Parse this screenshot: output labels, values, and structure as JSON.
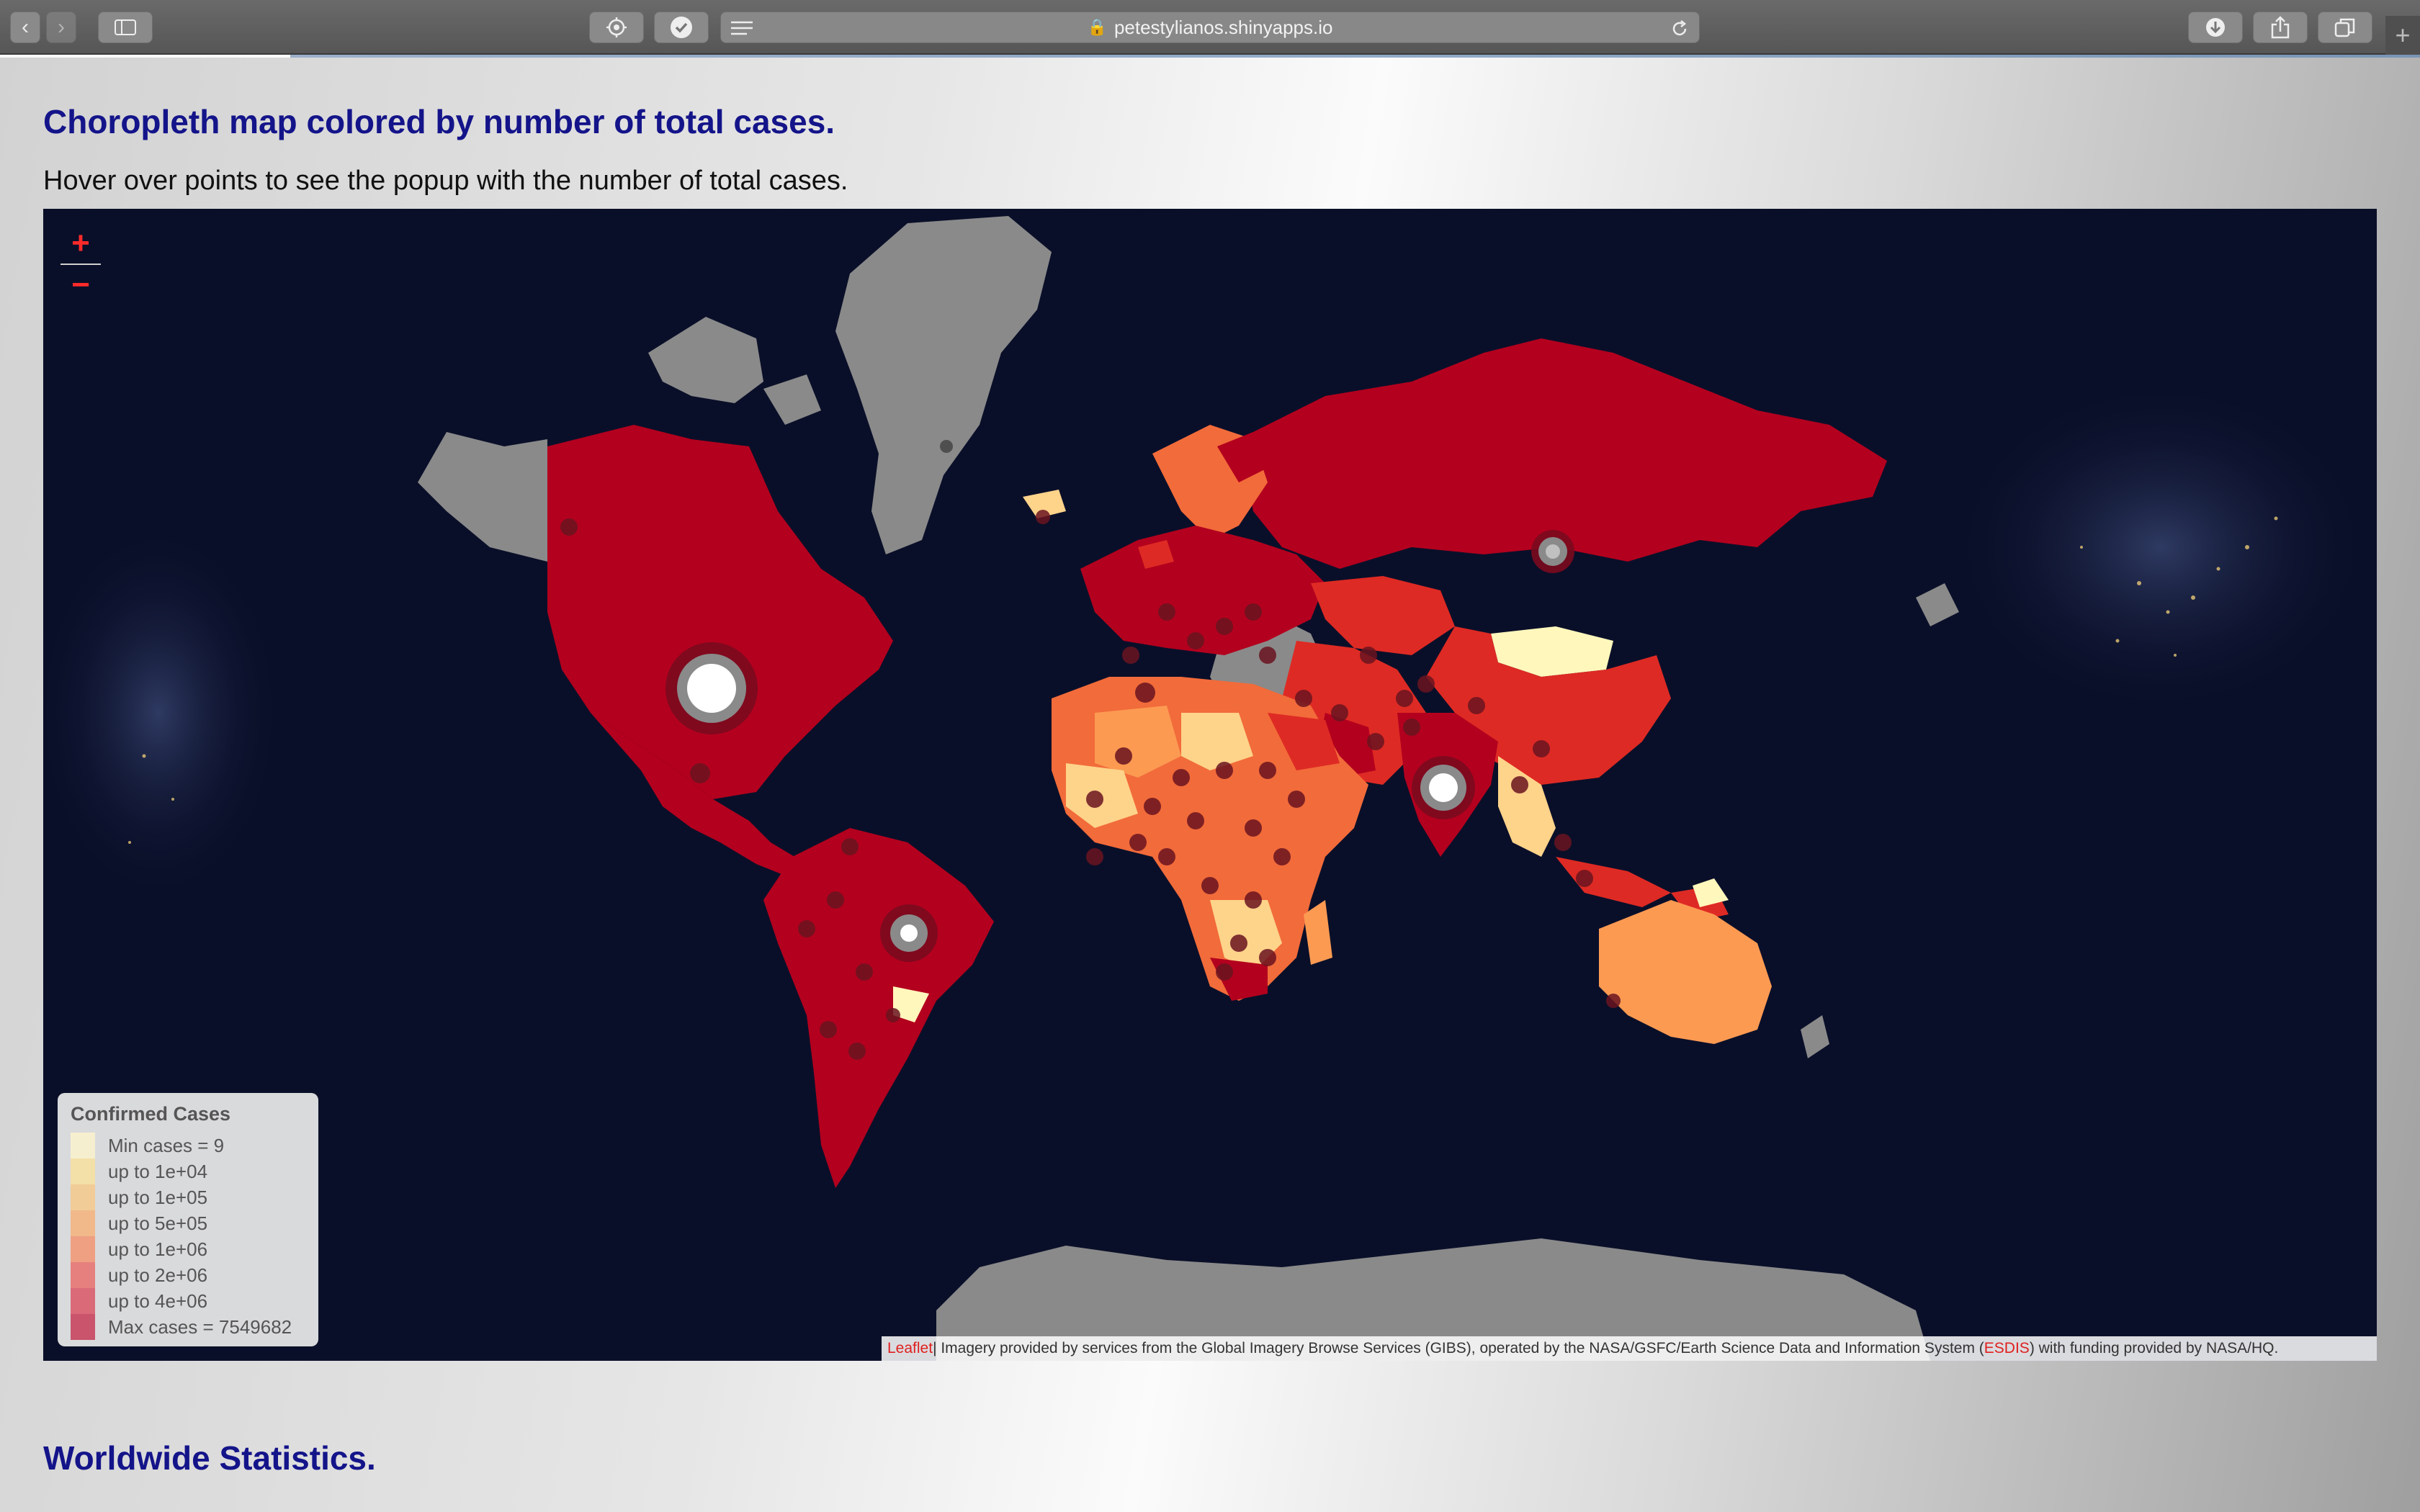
{
  "browser": {
    "url": "petestylianos.shinyapps.io",
    "icons": [
      "back-icon",
      "forward-icon",
      "sidebar-icon",
      "extension-icon",
      "checkmark-icon",
      "reader-icon",
      "lock-icon",
      "reload-icon",
      "download-icon",
      "share-icon",
      "tabs-icon",
      "new-tab-icon"
    ]
  },
  "page": {
    "map_title": "Choropleth map colored by number of total cases.",
    "map_subtitle": "Hover over points to see the popup with the number of total cases.",
    "stats_title": "Worldwide Statistics."
  },
  "map": {
    "zoom_in": "+",
    "zoom_out": "−",
    "legend": {
      "title": "Confirmed Cases",
      "items": [
        {
          "label": "Min cases = 9",
          "color": "#f6efcf"
        },
        {
          "label": "up to 1e+04",
          "color": "#f3dfa8"
        },
        {
          "label": "up to 1e+05",
          "color": "#f1cc97"
        },
        {
          "label": "up to 5e+05",
          "color": "#f1b98a"
        },
        {
          "label": "up to 1e+06",
          "color": "#ef9f82"
        },
        {
          "label": "up to 2e+06",
          "color": "#e6807e"
        },
        {
          "label": "up to 4e+06",
          "color": "#da6a78"
        },
        {
          "label": "Max cases = 7549682",
          "color": "#c9546c"
        }
      ]
    },
    "attribution": {
      "leaflet": "Leaflet",
      "text1": " | Imagery provided by services from the Global Imagery Browse Services (GIBS), operated by the NASA/GSFC/Earth Science Data and Information System (",
      "esdis": "ESDIS",
      "text2": ") with funding provided by NASA/HQ."
    },
    "colors": {
      "ocean": "#0a0f29",
      "no_data": "#8a8a8a",
      "high": "#b3001e",
      "upper": "#de2a24",
      "mid": "#f26b3a",
      "lower": "#fc9a52",
      "low": "#fed38a",
      "min": "#fff7bc"
    }
  }
}
